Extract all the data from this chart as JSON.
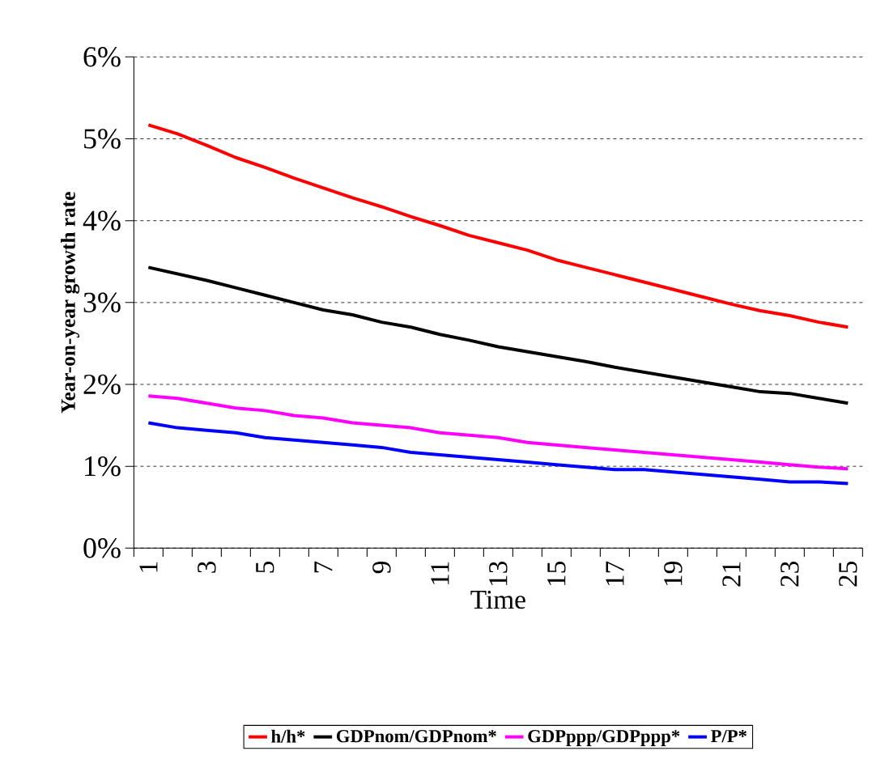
{
  "chart_data": {
    "type": "line",
    "xlabel": "Time",
    "ylabel": "Year-on-year growth rate",
    "categories": [
      "1",
      null,
      "3",
      null,
      "5",
      null,
      "7",
      null,
      "9",
      null,
      "11",
      null,
      "13",
      null,
      "15",
      null,
      "17",
      null,
      "19",
      null,
      "21",
      null,
      "23",
      null,
      "25"
    ],
    "series": [
      {
        "name": "h/h*",
        "color": "#ff0000",
        "values": [
          5.17,
          5.06,
          4.92,
          4.77,
          4.65,
          4.52,
          4.4,
          4.28,
          4.17,
          4.05,
          3.94,
          3.82,
          3.73,
          3.64,
          3.52,
          3.43,
          3.34,
          3.25,
          3.16,
          3.07,
          2.98,
          2.9,
          2.84,
          2.76,
          2.7
        ]
      },
      {
        "name": "GDPnom/GDPnom*",
        "color": "#000000",
        "values": [
          3.43,
          3.35,
          3.27,
          3.18,
          3.09,
          3.0,
          2.91,
          2.85,
          2.76,
          2.7,
          2.61,
          2.54,
          2.46,
          2.4,
          2.34,
          2.28,
          2.21,
          2.15,
          2.09,
          2.03,
          1.97,
          1.91,
          1.89,
          1.83,
          1.77
        ]
      },
      {
        "name": "GDPppp/GDPppp*",
        "color": "#ff00ff",
        "values": [
          1.86,
          1.83,
          1.77,
          1.71,
          1.68,
          1.62,
          1.59,
          1.53,
          1.5,
          1.47,
          1.41,
          1.38,
          1.35,
          1.29,
          1.26,
          1.23,
          1.2,
          1.17,
          1.14,
          1.11,
          1.08,
          1.05,
          1.02,
          0.99,
          0.97
        ]
      },
      {
        "name": "P/P*",
        "color": "#0000ff",
        "values": [
          1.53,
          1.47,
          1.44,
          1.41,
          1.35,
          1.32,
          1.29,
          1.26,
          1.23,
          1.17,
          1.14,
          1.11,
          1.08,
          1.05,
          1.02,
          0.99,
          0.96,
          0.96,
          0.93,
          0.9,
          0.87,
          0.84,
          0.81,
          0.81,
          0.79
        ]
      }
    ],
    "ylim": [
      0,
      6
    ],
    "yticks": [
      {
        "value": 0,
        "label": "0%"
      },
      {
        "value": 1,
        "label": "1%"
      },
      {
        "value": 2,
        "label": "2%"
      },
      {
        "value": 3,
        "label": "3%"
      },
      {
        "value": 4,
        "label": "4%"
      },
      {
        "value": 5,
        "label": "5%"
      },
      {
        "value": 6,
        "label": "6%"
      }
    ],
    "grid": "y",
    "legend": "bottom",
    "marker": "none",
    "line_style": "solid"
  }
}
